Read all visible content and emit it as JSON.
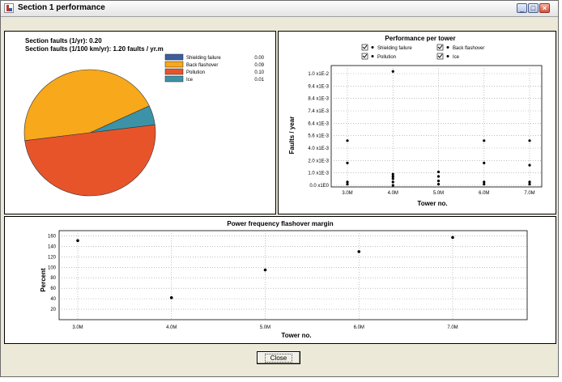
{
  "window": {
    "title": "Section 1 performance",
    "close_button": "Close"
  },
  "pie_panel": {
    "line1": "Section faults (1/yr): 0.20",
    "line2": "Section faults (1/100 km/yr): 1.20 faults / yr.m",
    "chart_data": {
      "type": "pie",
      "slices": [
        {
          "label": "Shielding failure",
          "value": 0.0,
          "value_label": "0.00",
          "color": "#3d5e9e"
        },
        {
          "label": "Back flashover",
          "value": 0.09,
          "value_label": "0.09",
          "color": "#f7a81b"
        },
        {
          "label": "Pollution",
          "value": 0.1,
          "value_label": "0.10",
          "color": "#e8542a"
        },
        {
          "label": "Ice",
          "value": 0.01,
          "value_label": "0.01",
          "color": "#3c93a8"
        }
      ]
    }
  },
  "scatter_panel": {
    "chart_data": {
      "type": "scatter",
      "title": "Performance per tower",
      "xlabel": "Tower no.",
      "ylabel": "Faults / year",
      "x_ticks": [
        "3.0M",
        "4.0M",
        "5.0M",
        "6.0M",
        "7.0M"
      ],
      "y_ticks": [
        "0.0 x1E0",
        "1.0 x1E-3",
        "2.0 x1E-3",
        "4.0 x1E-3",
        "5.6 x1E-3",
        "6.4 x1E-3",
        "7.4 x1E-3",
        "8.4 x1E-3",
        "9.4 x1E-3",
        "1.0 x1E-2"
      ],
      "legend": [
        {
          "label": "Shielding failure",
          "checked": true
        },
        {
          "label": "Back flashover",
          "checked": true
        },
        {
          "label": "Pollution",
          "checked": true
        },
        {
          "label": "Ice",
          "checked": true
        }
      ],
      "points": [
        {
          "x": 0,
          "y": 0.03
        },
        {
          "x": 0,
          "y": 0.01
        },
        {
          "x": 0,
          "y": 0.2
        },
        {
          "x": 0,
          "y": 0.4
        },
        {
          "x": 1,
          "y": 0.0
        },
        {
          "x": 1,
          "y": 0.03
        },
        {
          "x": 1,
          "y": 0.06
        },
        {
          "x": 1,
          "y": 0.08
        },
        {
          "x": 1,
          "y": 0.1
        },
        {
          "x": 1,
          "y": 1.02
        },
        {
          "x": 2,
          "y": 0.01
        },
        {
          "x": 2,
          "y": 0.04
        },
        {
          "x": 2,
          "y": 0.08
        },
        {
          "x": 2,
          "y": 0.12
        },
        {
          "x": 3,
          "y": 0.01
        },
        {
          "x": 3,
          "y": 0.03
        },
        {
          "x": 3,
          "y": 0.2
        },
        {
          "x": 3,
          "y": 0.4
        },
        {
          "x": 4,
          "y": 0.01
        },
        {
          "x": 4,
          "y": 0.03
        },
        {
          "x": 4,
          "y": 0.18
        },
        {
          "x": 4,
          "y": 0.4
        }
      ]
    }
  },
  "line_panel": {
    "chart_data": {
      "type": "scatter",
      "title": "Power frequency flashover margin",
      "xlabel": "Tower no.",
      "ylabel": "Percent",
      "x_ticks": [
        "3.0M",
        "4.0M",
        "5.0M",
        "6.0M",
        "7.0M"
      ],
      "y_ticks": [
        "20",
        "40",
        "60",
        "80",
        "100",
        "120",
        "140",
        "160"
      ],
      "ylim": [
        0,
        170
      ],
      "points": [
        {
          "x": 0,
          "y": 151
        },
        {
          "x": 1,
          "y": 42
        },
        {
          "x": 2,
          "y": 95
        },
        {
          "x": 3,
          "y": 130
        },
        {
          "x": 4,
          "y": 157
        }
      ]
    }
  }
}
